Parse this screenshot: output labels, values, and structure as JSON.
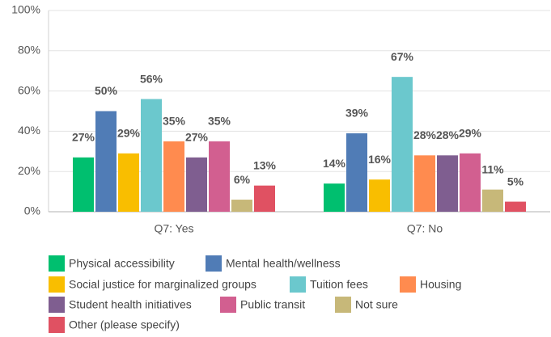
{
  "chart_data": {
    "type": "bar",
    "categories": [
      "Q7: Yes",
      "Q7: No"
    ],
    "series": [
      {
        "name": "Physical accessibility",
        "color": "#00bf6f",
        "values": [
          27,
          14
        ],
        "value_labels": [
          "27%",
          "14%"
        ]
      },
      {
        "name": "Mental health/wellness",
        "color": "#507cb6",
        "values": [
          50,
          39
        ],
        "value_labels": [
          "50%",
          "39%"
        ]
      },
      {
        "name": "Social justice for marginalized groups",
        "color": "#f9be00",
        "values": [
          29,
          16
        ],
        "value_labels": [
          "29%",
          "16%"
        ]
      },
      {
        "name": "Tuition fees",
        "color": "#6bc8cd",
        "values": [
          56,
          67
        ],
        "value_labels": [
          "56%",
          "67%"
        ]
      },
      {
        "name": "Housing",
        "color": "#ff8b4f",
        "values": [
          35,
          28
        ],
        "value_labels": [
          "35%",
          "28%"
        ]
      },
      {
        "name": "Student health initiatives",
        "color": "#7f5e90",
        "values": [
          27,
          28
        ],
        "value_labels": [
          "27%",
          "28%"
        ]
      },
      {
        "name": "Public transit",
        "color": "#d25f90",
        "values": [
          35,
          29
        ],
        "value_labels": [
          "35%",
          "29%"
        ]
      },
      {
        "name": "Not sure",
        "color": "#c7b879",
        "values": [
          6,
          11
        ],
        "value_labels": [
          "6%",
          "11%"
        ]
      },
      {
        "name": "Other (please specify)",
        "color": "#e05162",
        "values": [
          13,
          5
        ],
        "value_labels": [
          "13%",
          "5%"
        ]
      }
    ],
    "ylim": [
      0,
      100
    ],
    "yticks": [
      {
        "value": 0,
        "label": "0%"
      },
      {
        "value": 20,
        "label": "20%"
      },
      {
        "value": 40,
        "label": "40%"
      },
      {
        "value": 60,
        "label": "60%"
      },
      {
        "value": 80,
        "label": "80%"
      },
      {
        "value": 100,
        "label": "100%"
      }
    ],
    "grid": true
  }
}
